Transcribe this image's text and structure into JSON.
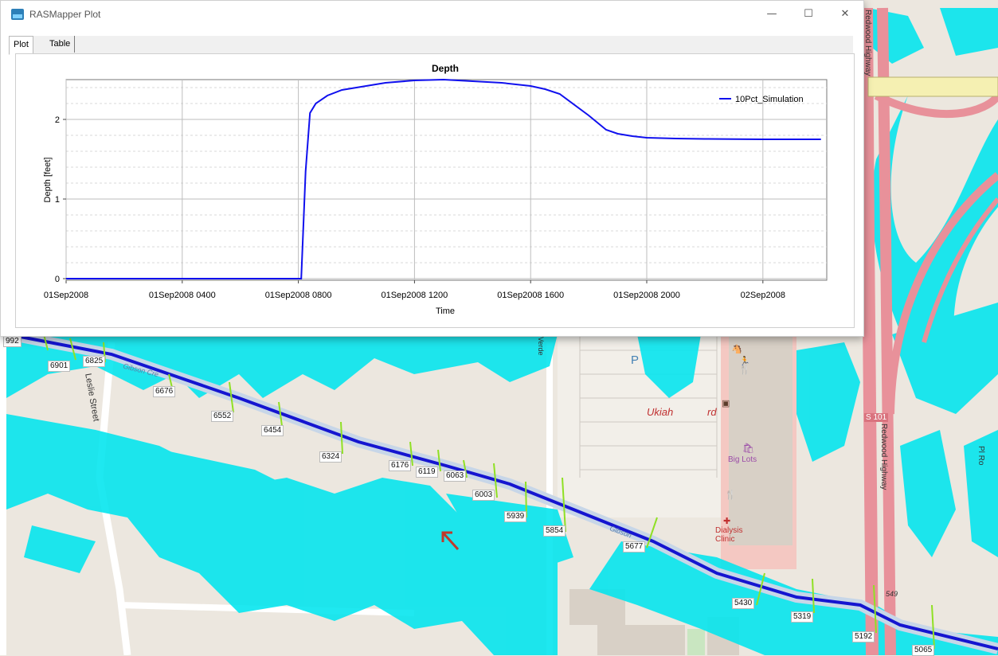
{
  "window": {
    "title": "RASMapper Plot",
    "controls": {
      "minimize": "—",
      "maximize": "☐",
      "close": "✕"
    },
    "tabs": [
      {
        "label": "Plot",
        "active": true
      },
      {
        "label": "Table",
        "active": false
      }
    ]
  },
  "chart_data": {
    "type": "line",
    "title": "Depth",
    "xlabel": "Time",
    "ylabel": "Depth [feet]",
    "x_ticks": [
      "01Sep2008",
      "01Sep2008 0400",
      "01Sep2008 0800",
      "01Sep2008 1200",
      "01Sep2008 1600",
      "01Sep2008 2000",
      "02Sep2008"
    ],
    "x_tick_hours": [
      0,
      4,
      8,
      12,
      16,
      20,
      24
    ],
    "xlim_hours": [
      0,
      26.2
    ],
    "y_ticks": [
      0,
      1,
      2
    ],
    "ylim": [
      -0.02,
      2.5
    ],
    "grid": true,
    "legend_position": "top-right",
    "series": [
      {
        "name": "10Pct_Simulation",
        "color": "#1010ee",
        "x_hours": [
          0,
          8.1,
          8.25,
          8.4,
          8.6,
          9.0,
          9.5,
          10,
          11,
          12,
          13,
          14,
          15,
          16,
          16.5,
          17,
          18,
          18.6,
          19,
          19.5,
          20,
          21,
          22,
          23,
          24,
          25,
          26.0
        ],
        "y": [
          0,
          0,
          1.35,
          2.08,
          2.2,
          2.3,
          2.37,
          2.4,
          2.46,
          2.49,
          2.5,
          2.48,
          2.46,
          2.42,
          2.38,
          2.32,
          2.05,
          1.87,
          1.82,
          1.79,
          1.77,
          1.76,
          1.755,
          1.752,
          1.75,
          1.75,
          1.75
        ]
      }
    ]
  },
  "map": {
    "accent_water": "#00e5ee",
    "river_color": "#1515d0",
    "cross_section_color": "#8fe024",
    "cross_sections": [
      {
        "id": "cs-0",
        "label": "992"
      },
      {
        "id": "cs-1",
        "label": "6901"
      },
      {
        "id": "cs-2",
        "label": "6825"
      },
      {
        "id": "cs-3",
        "label": "6676"
      },
      {
        "id": "cs-4",
        "label": "6552"
      },
      {
        "id": "cs-5",
        "label": "6454"
      },
      {
        "id": "cs-6",
        "label": "6324"
      },
      {
        "id": "cs-7",
        "label": "6176"
      },
      {
        "id": "cs-8",
        "label": "6119"
      },
      {
        "id": "cs-9",
        "label": "6063"
      },
      {
        "id": "cs-10",
        "label": "6003"
      },
      {
        "id": "cs-11",
        "label": "5939"
      },
      {
        "id": "cs-12",
        "label": "5854"
      },
      {
        "id": "cs-13",
        "label": "5677"
      },
      {
        "id": "cs-14",
        "label": "5430"
      },
      {
        "id": "cs-15",
        "label": "5319"
      },
      {
        "id": "cs-16",
        "label": "5192"
      },
      {
        "id": "cs-17",
        "label": "5065"
      }
    ],
    "streets": {
      "leslie": "Leslie Street",
      "redwood_top": "Redwood Highway",
      "redwood_right": "Redwood Highway",
      "gibson_creek": "Gibson Cre",
      "gibson_lower": "Gibson",
      "route": "S 101",
      "route_549": "549",
      "partial_right": "Pl Ro",
      "partial_top": "Verde"
    },
    "pois": {
      "ukiah": "Ukiah",
      "ukiah_tail": "rd",
      "big_lots": "Big Lots",
      "dialysis": "Dialysis Clinic",
      "parking": "P"
    }
  }
}
